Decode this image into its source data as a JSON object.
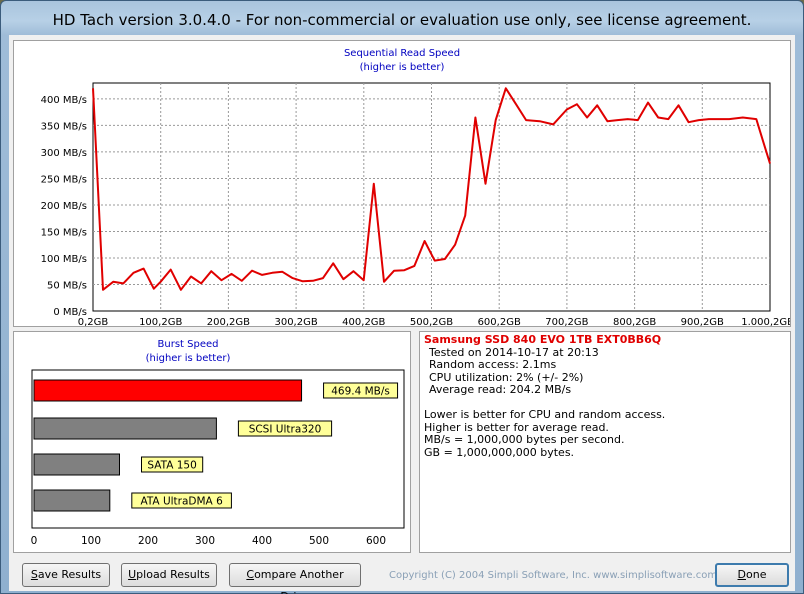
{
  "window": {
    "title": "HD Tach version 3.0.4.0  - For non-commercial or evaluation use only, see license agreement."
  },
  "chart_data": [
    {
      "type": "line",
      "title": "Sequential Read Speed",
      "subtitle": "(higher is better)",
      "x_ticks": [
        "0,2GB",
        "100,2GB",
        "200,2GB",
        "300,2GB",
        "400,2GB",
        "500,2GB",
        "600,2GB",
        "700,2GB",
        "800,2GB",
        "900,2GB",
        "1.000,2GB"
      ],
      "y_ticks": [
        "0 MB/s",
        "50 MB/s",
        "100 MB/s",
        "150 MB/s",
        "200 MB/s",
        "250 MB/s",
        "300 MB/s",
        "350 MB/s",
        "400 MB/s"
      ],
      "xlim": [
        0.2,
        1000.2
      ],
      "ylim": [
        0,
        430
      ],
      "grid": true,
      "series": [
        {
          "name": "Samsung SSD 840 EVO 1TB EXT0BB6Q",
          "color": "#e00000",
          "x": [
            0.2,
            15,
            30,
            45,
            60,
            75,
            90,
            100,
            115,
            130,
            145,
            160,
            175,
            190,
            205,
            220,
            235,
            250,
            265,
            280,
            295,
            310,
            325,
            340,
            355,
            370,
            385,
            400,
            415,
            430,
            445,
            460,
            475,
            490,
            505,
            520,
            535,
            550,
            565,
            580,
            595,
            610,
            625,
            640,
            660,
            680,
            700,
            715,
            730,
            745,
            760,
            775,
            790,
            805,
            820,
            835,
            850,
            865,
            880,
            895,
            910,
            925,
            940,
            960,
            980,
            990,
            1000.2
          ],
          "values": [
            420,
            40,
            55,
            52,
            72,
            80,
            42,
            55,
            78,
            40,
            65,
            52,
            75,
            58,
            70,
            57,
            76,
            68,
            72,
            74,
            62,
            56,
            57,
            62,
            90,
            60,
            75,
            58,
            240,
            55,
            76,
            77,
            85,
            132,
            95,
            98,
            125,
            180,
            365,
            240,
            360,
            420,
            390,
            360,
            358,
            352,
            380,
            390,
            365,
            388,
            358,
            360,
            362,
            360,
            393,
            365,
            362,
            388,
            356,
            360,
            362,
            362,
            362,
            365,
            362,
            320,
            278
          ]
        }
      ]
    },
    {
      "type": "bar",
      "orientation": "horizontal",
      "title": "Burst Speed",
      "subtitle": "(higher is better)",
      "categories": [
        "Samsung SSD 840 EVO 1TB EXT0BB6Q",
        "SCSI Ultra320",
        "SATA 150",
        "ATA UltraDMA 6"
      ],
      "values": [
        469.4,
        320,
        150,
        133
      ],
      "labels": [
        "469.4 MB/s",
        "SCSI Ultra320",
        "SATA 150",
        "ATA UltraDMA 6"
      ],
      "colors": [
        "#ff0000",
        "#808080",
        "#808080",
        "#808080"
      ],
      "x_ticks": [
        "0",
        "100",
        "200",
        "300",
        "400",
        "500",
        "600"
      ],
      "xlim": [
        0,
        600
      ]
    }
  ],
  "info": {
    "drive": "Samsung SSD 840 EVO 1TB EXT0BB6Q",
    "lines": [
      "Tested on 2014-10-17 at 20:13",
      "Random access: 2.1ms",
      "CPU utilization: 2% (+/- 2%)",
      "Average read: 204.2 MB/s"
    ],
    "notes": [
      "Lower is better for CPU and random access.",
      "Higher is better for average read.",
      "MB/s = 1,000,000 bytes per second.",
      "GB = 1,000,000,000 bytes."
    ]
  },
  "buttons": {
    "save": {
      "mnemonic": "S",
      "rest": "ave Results"
    },
    "upload": {
      "mnemonic": "U",
      "rest": "pload Results"
    },
    "compare": {
      "mnemonic": "C",
      "rest": "ompare Another Drive"
    },
    "done": {
      "mnemonic": "D",
      "rest": "one"
    }
  },
  "copyright": "Copyright (C) 2004 Simpli Software, Inc. www.simplisoftware.com"
}
